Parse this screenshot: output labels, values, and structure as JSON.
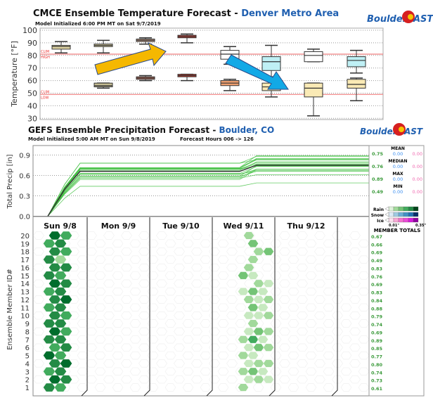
{
  "chart_data": [
    {
      "type": "box",
      "title": "CMCE Ensemble Temperature Forecast - ",
      "title_location": "Denver Metro Area",
      "subtitle": "Model Initialized 6:00 PM MT on Sat 9/7/2019",
      "ylabel": "Temperature [°F]",
      "ylim": [
        30,
        100
      ],
      "yticks": [
        "100",
        "90",
        "80",
        "70",
        "60",
        "50",
        "40",
        "30"
      ],
      "grid": true,
      "reference_lines": [
        {
          "label": "CLIM HIGH",
          "label1": "CLIM",
          "label2": "HIGH",
          "value": 81
        },
        {
          "label": "CLIM LOW",
          "label1": "CLIM",
          "label2": "LOW",
          "value": 49
        }
      ],
      "highs": [
        {
          "min": 82,
          "q1": 85,
          "median": 87,
          "q3": 88,
          "max": 91,
          "color": "#e8dca8"
        },
        {
          "min": 82,
          "q1": 87,
          "median": 88,
          "q3": 89,
          "max": 92,
          "color": "#e8dca8"
        },
        {
          "min": 89,
          "q1": 91,
          "median": 92,
          "q3": 93,
          "max": 94,
          "color": "#c9a08a"
        },
        {
          "min": 90,
          "q1": 94,
          "median": 95,
          "q3": 96,
          "max": 97,
          "color": "#c0392b"
        },
        {
          "min": 73,
          "q1": 77,
          "median": 81,
          "q3": 84,
          "max": 87,
          "color": "#ffffff"
        },
        {
          "min": 63,
          "q1": 68,
          "median": 75,
          "q3": 79,
          "max": 88,
          "color": "#bff0f5"
        },
        {
          "min": 75,
          "q1": 75,
          "median": 80,
          "q3": 83,
          "max": 85,
          "color": "#ffffff"
        },
        {
          "min": 66,
          "q1": 71,
          "median": 76,
          "q3": 79,
          "max": 84,
          "color": "#bff0f5"
        }
      ],
      "lows": [
        null,
        {
          "min": 54,
          "q1": 55,
          "median": 56,
          "q3": 58,
          "max": 58,
          "color": "#c8bf95"
        },
        {
          "min": 60,
          "q1": 61,
          "median": 62,
          "q3": 63,
          "max": 64,
          "color": "#c9735e"
        },
        {
          "min": 60,
          "q1": 63,
          "median": 64,
          "q3": 65,
          "max": 65,
          "color": "#c0392b"
        },
        {
          "min": 52,
          "q1": 56,
          "median": 58,
          "q3": 60,
          "max": 61,
          "color": "#f0a070"
        },
        {
          "min": 47,
          "q1": 52,
          "median": 55,
          "q3": 58,
          "max": 61,
          "color": "#faeab5"
        },
        {
          "min": 32,
          "q1": 47,
          "median": 54,
          "q3": 58,
          "max": 58,
          "color": "#faeab5"
        },
        {
          "min": 44,
          "q1": 54,
          "median": 57,
          "q3": 61,
          "max": 62,
          "color": "#faeab5"
        }
      ]
    },
    {
      "type": "line",
      "title": "GEFS Ensemble Precipitation Forecast - ",
      "title_location": "Boulder, CO",
      "subtitle": "Model Initialized 5:00 AM MT on Sun 9/8/2019",
      "subtitle2": "Forecast Hours 006 -> 126",
      "ylabel": "Total Precip [in]",
      "ylim": [
        0,
        1.0
      ],
      "yticks": [
        "0.9",
        "0.6",
        "0.3",
        "0.0"
      ],
      "mean_total": 0.75,
      "mean_after_day1": 0.66,
      "series_color": "#3fbf3f",
      "mean_color": "#333333"
    },
    {
      "type": "heatmap",
      "ylabel": "Ensemble Member ID#",
      "days": [
        "Sun 9/8",
        "Mon 9/9",
        "Tue 9/10",
        "Wed 9/11",
        "Thu 9/12"
      ],
      "members": [
        "20",
        "19",
        "18",
        "17",
        "16",
        "15",
        "14",
        "13",
        "12",
        "11",
        "10",
        "9",
        "8",
        "7",
        "6",
        "5",
        "4",
        "3",
        "2",
        "1"
      ],
      "sun_levels": [
        [
          6,
          4
        ],
        [
          4,
          5
        ],
        [
          5,
          4
        ],
        [
          5,
          2
        ],
        [
          5,
          5
        ],
        [
          5,
          4
        ],
        [
          6,
          5
        ],
        [
          4,
          5
        ],
        [
          5,
          6
        ],
        [
          4,
          5
        ],
        [
          5,
          4
        ],
        [
          5,
          5
        ],
        [
          6,
          4
        ],
        [
          5,
          5
        ],
        [
          4,
          5
        ],
        [
          6,
          4
        ],
        [
          5,
          6
        ],
        [
          4,
          5
        ],
        [
          6,
          5
        ],
        [
          5,
          4
        ]
      ],
      "wed_levels": [
        [
          2,
          0,
          0
        ],
        [
          0,
          3,
          0
        ],
        [
          0,
          2,
          3
        ],
        [
          0,
          2,
          0
        ],
        [
          2,
          0,
          0
        ],
        [
          3,
          1,
          0
        ],
        [
          0,
          2,
          1
        ],
        [
          1,
          3,
          1
        ],
        [
          2,
          1,
          2
        ],
        [
          0,
          3,
          1
        ],
        [
          1,
          1,
          2
        ],
        [
          0,
          2,
          0
        ],
        [
          1,
          3,
          2
        ],
        [
          2,
          4,
          1
        ],
        [
          1,
          3,
          2
        ],
        [
          2,
          1,
          0
        ],
        [
          1,
          2,
          2
        ],
        [
          2,
          3,
          1
        ],
        [
          1,
          2,
          1
        ],
        [
          2,
          0,
          0
        ]
      ]
    }
  ],
  "logo": "BoulderCAST",
  "stats": {
    "mean": {
      "label": "MEAN",
      "rain": "0.75",
      "snow": "0.00",
      "ice": "0.00"
    },
    "median": {
      "label": "MEDIAN",
      "rain": "0.76",
      "snow": "0.00",
      "ice": "0.00"
    },
    "max": {
      "label": "MAX",
      "rain": "0.89",
      "snow": "0.00",
      "ice": "0.00"
    },
    "min": {
      "label": "MIN",
      "rain": "0.49",
      "snow": "0.00",
      "ice": "0.00"
    }
  },
  "legend": {
    "rain": "Rain",
    "snow": "Snow",
    "ice": "Ice",
    "low": "0.01\"",
    "high": "0.35\""
  },
  "member_totals_label": "MEMBER TOTALS",
  "member_totals": [
    "0.67",
    "0.66",
    "0.69",
    "0.49",
    "0.83",
    "0.76",
    "0.69",
    "0.83",
    "0.84",
    "0.88",
    "0.79",
    "0.74",
    "0.69",
    "0.89",
    "0.85",
    "0.77",
    "0.80",
    "0.74",
    "0.73",
    "0.61"
  ]
}
